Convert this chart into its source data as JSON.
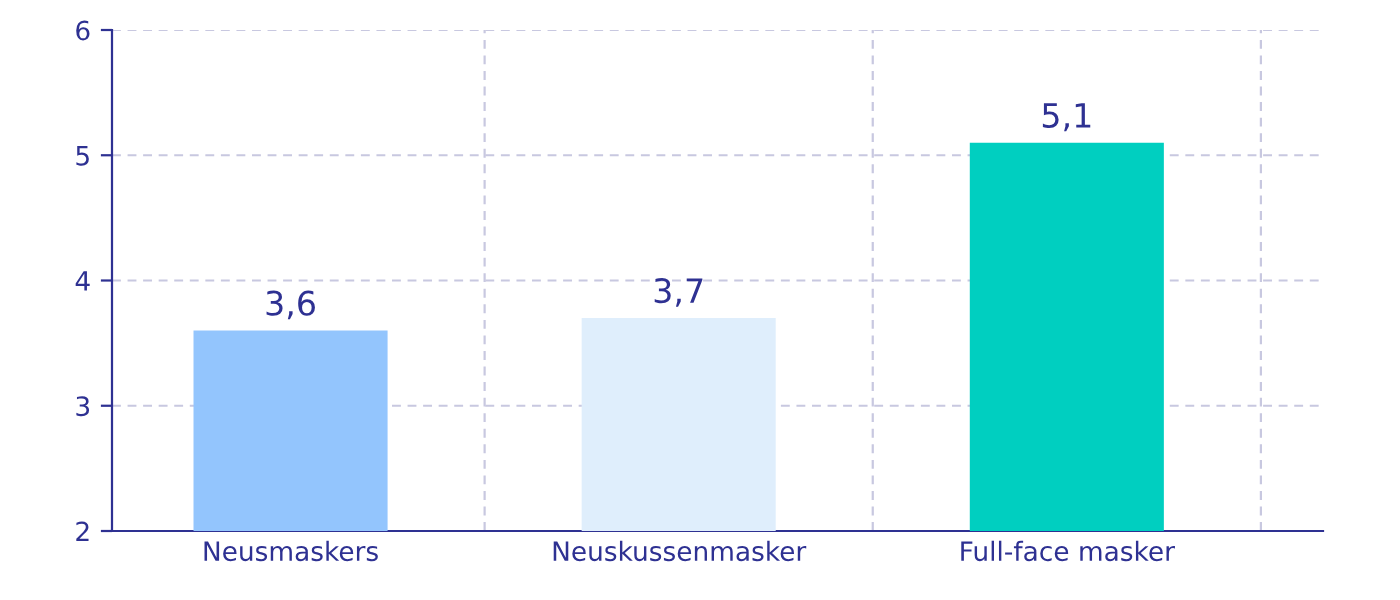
{
  "chart_data": {
    "type": "bar",
    "categories": [
      "Neusmaskers",
      "Neuskussenmasker",
      "Full-face masker"
    ],
    "values": [
      3.6,
      3.7,
      5.1
    ],
    "colors": [
      "#93c5fd",
      "#dfeefc",
      "#00cfc0"
    ],
    "value_labels": [
      "3,6",
      "3,7",
      "5,1"
    ],
    "ylim": [
      2,
      6
    ],
    "yticks": [
      2,
      3,
      4,
      5,
      6
    ],
    "grid": true,
    "legend": false
  }
}
